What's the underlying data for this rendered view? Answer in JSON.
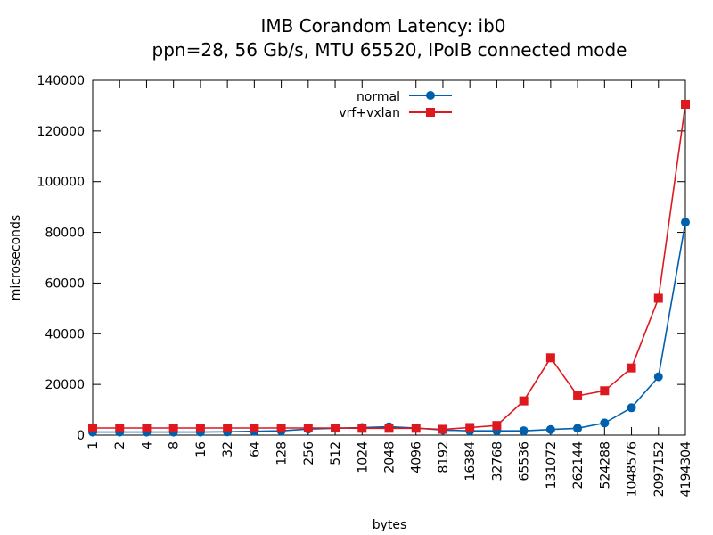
{
  "chart_data": {
    "type": "line",
    "title": "IMB Corandom Latency: ib0",
    "subtitle": "ppn=28, 56 Gb/s, MTU 65520, IPoIB connected mode",
    "xlabel": "bytes",
    "ylabel": "microseconds",
    "ylim": [
      0,
      140000
    ],
    "yticks": [
      0,
      20000,
      40000,
      60000,
      80000,
      100000,
      120000,
      140000
    ],
    "x_scale": "categorical",
    "grid": false,
    "legend_position": "top-center",
    "categories": [
      "1",
      "2",
      "4",
      "8",
      "16",
      "32",
      "64",
      "128",
      "256",
      "512",
      "1024",
      "2048",
      "4096",
      "8192",
      "16384",
      "32768",
      "65536",
      "131072",
      "262144",
      "524288",
      "1048576",
      "2097152",
      "4194304"
    ],
    "series": [
      {
        "name": "normal",
        "color": "#0060ad",
        "marker": "circle",
        "values": [
          1200,
          1200,
          1200,
          1200,
          1200,
          1300,
          1500,
          1700,
          2400,
          2700,
          3000,
          3300,
          2800,
          2000,
          1700,
          1700,
          1700,
          2200,
          2700,
          4800,
          10800,
          23000,
          84000
        ]
      },
      {
        "name": "vrf+vxlan",
        "color": "#dd181f",
        "marker": "square",
        "values": [
          2800,
          2800,
          2800,
          2800,
          2800,
          2800,
          2800,
          2800,
          2800,
          2800,
          2700,
          2700,
          2700,
          2300,
          3000,
          3800,
          13500,
          30500,
          15500,
          17500,
          26500,
          54000,
          130500
        ]
      }
    ]
  }
}
